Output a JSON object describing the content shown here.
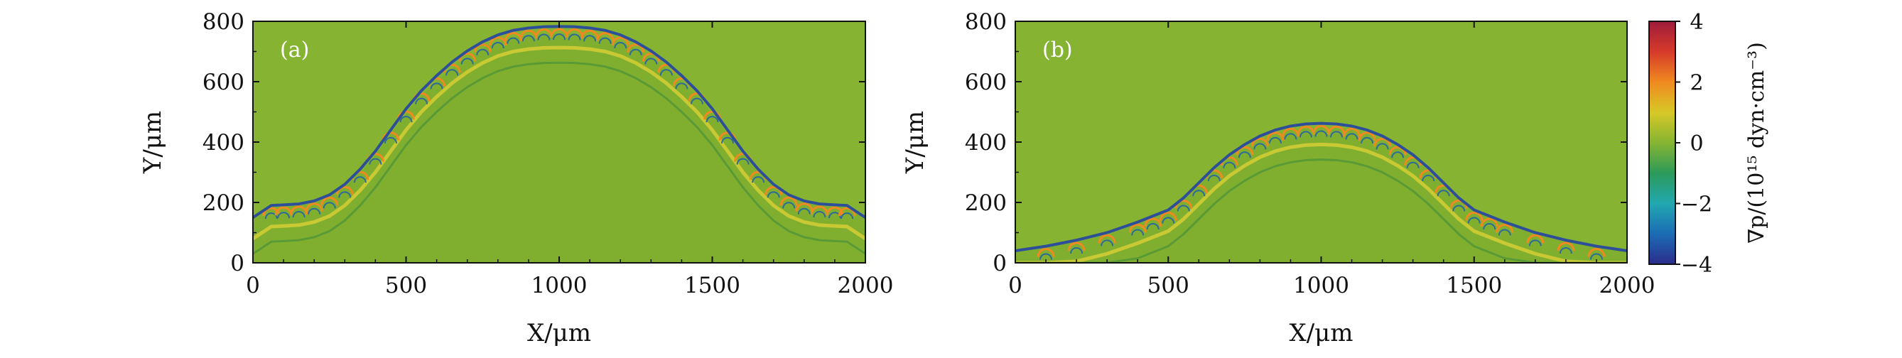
{
  "chart_data": {
    "type": "heatmap",
    "panels": [
      {
        "label": "(a)",
        "xlabel": "X/μm",
        "ylabel": "Y/μm",
        "xlim": [
          0,
          2000
        ],
        "ylim": [
          0,
          800
        ],
        "xticks": [
          0,
          500,
          1000,
          1500,
          2000
        ],
        "yticks": [
          0,
          200,
          400,
          600,
          800
        ],
        "background_color": "#86b432",
        "front_color": "#2d4f9a",
        "front_profile": {
          "x": [
            0,
            60,
            100,
            150,
            200,
            250,
            300,
            350,
            400,
            450,
            500,
            550,
            600,
            650,
            700,
            750,
            800,
            850,
            900,
            950,
            1000,
            1050,
            1100,
            1150,
            1200,
            1250,
            1300,
            1350,
            1400,
            1450,
            1500,
            1550,
            1600,
            1650,
            1700,
            1750,
            1800,
            1850,
            1900,
            1940,
            2000
          ],
          "y": [
            150,
            190,
            192,
            195,
            205,
            225,
            260,
            310,
            370,
            440,
            510,
            570,
            620,
            665,
            702,
            732,
            755,
            770,
            778,
            782,
            783,
            782,
            778,
            770,
            755,
            732,
            702,
            665,
            620,
            570,
            510,
            440,
            370,
            310,
            260,
            225,
            205,
            195,
            192,
            190,
            150
          ]
        }
      },
      {
        "label": "(b)",
        "xlabel": "X/μm",
        "ylabel": "Y/μm",
        "xlim": [
          0,
          2000
        ],
        "ylim": [
          0,
          800
        ],
        "xticks": [
          0,
          500,
          1000,
          1500,
          2000
        ],
        "yticks": [
          0,
          200,
          400,
          600,
          800
        ],
        "background_color": "#86b432",
        "front_color": "#2d4f9a",
        "front_profile": {
          "x": [
            0,
            100,
            200,
            300,
            400,
            450,
            500,
            550,
            600,
            650,
            700,
            750,
            800,
            850,
            900,
            950,
            1000,
            1050,
            1100,
            1150,
            1200,
            1250,
            1300,
            1350,
            1400,
            1450,
            1500,
            1550,
            1600,
            1700,
            1800,
            1900,
            2000
          ],
          "y": [
            40,
            55,
            75,
            100,
            135,
            155,
            175,
            215,
            265,
            315,
            358,
            392,
            420,
            440,
            453,
            460,
            462,
            460,
            453,
            440,
            420,
            392,
            358,
            315,
            265,
            215,
            175,
            155,
            135,
            100,
            75,
            55,
            40
          ]
        }
      }
    ],
    "colorbar": {
      "label": "∇p/(10¹⁵ dyn·cm⁻³)",
      "range": [
        -4,
        4
      ],
      "ticks": [
        4,
        2,
        0,
        -2,
        -4
      ],
      "tick_labels": [
        "4",
        "2",
        "0",
        "−2",
        "−4"
      ],
      "colors": [
        "#2b2c8c",
        "#1c6cb4",
        "#22a8b0",
        "#2c9a5a",
        "#86b432",
        "#d6c826",
        "#f08a20",
        "#d63a2a",
        "#9e1c3c"
      ]
    }
  }
}
